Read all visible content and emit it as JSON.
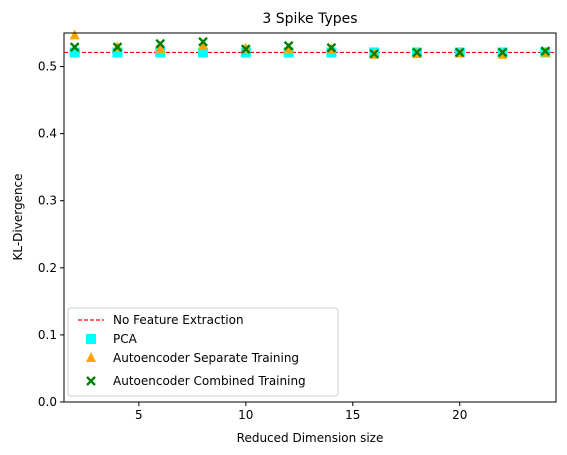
{
  "chart_data": {
    "type": "scatter",
    "title": "3 Spike Types",
    "xlabel": "Reduced Dimension size",
    "ylabel": "KL-Divergence",
    "xlim": [
      1.5,
      24.5
    ],
    "ylim": [
      0.0,
      0.55
    ],
    "xticks": [
      5,
      10,
      15,
      20
    ],
    "yticks": [
      0.0,
      0.1,
      0.2,
      0.3,
      0.4,
      0.5
    ],
    "xtick_labels": [
      "5",
      "10",
      "15",
      "20"
    ],
    "ytick_labels": [
      "0.0",
      "0.1",
      "0.2",
      "0.3",
      "0.4",
      "0.5"
    ],
    "grid": false,
    "legend_position": "lower-left",
    "reference_line": {
      "name": "No Feature Extraction",
      "y": 0.521,
      "color": "#ff0000",
      "style": "dashed"
    },
    "series": [
      {
        "name": "PCA",
        "marker": "square",
        "color": "#00ffff",
        "x": [
          2,
          4,
          6,
          8,
          10,
          12,
          14,
          16,
          18,
          20,
          22,
          24
        ],
        "y": [
          0.521,
          0.521,
          0.521,
          0.521,
          0.521,
          0.521,
          0.521,
          0.521,
          0.521,
          0.521,
          0.521,
          0.521
        ]
      },
      {
        "name": "Autoencoder Separate Training",
        "marker": "triangle",
        "color": "#ffa500",
        "x": [
          2,
          4,
          6,
          8,
          10,
          12,
          14,
          16,
          18,
          20,
          22,
          24
        ],
        "y": [
          0.548,
          0.53,
          0.528,
          0.532,
          0.528,
          0.528,
          0.527,
          0.519,
          0.52,
          0.521,
          0.519,
          0.522
        ]
      },
      {
        "name": "Autoencoder Combined Training",
        "marker": "x",
        "color": "#008000",
        "x": [
          2,
          4,
          6,
          8,
          10,
          12,
          14,
          16,
          18,
          20,
          22,
          24
        ],
        "y": [
          0.529,
          0.529,
          0.534,
          0.537,
          0.526,
          0.531,
          0.528,
          0.519,
          0.521,
          0.521,
          0.521,
          0.523
        ]
      }
    ]
  }
}
